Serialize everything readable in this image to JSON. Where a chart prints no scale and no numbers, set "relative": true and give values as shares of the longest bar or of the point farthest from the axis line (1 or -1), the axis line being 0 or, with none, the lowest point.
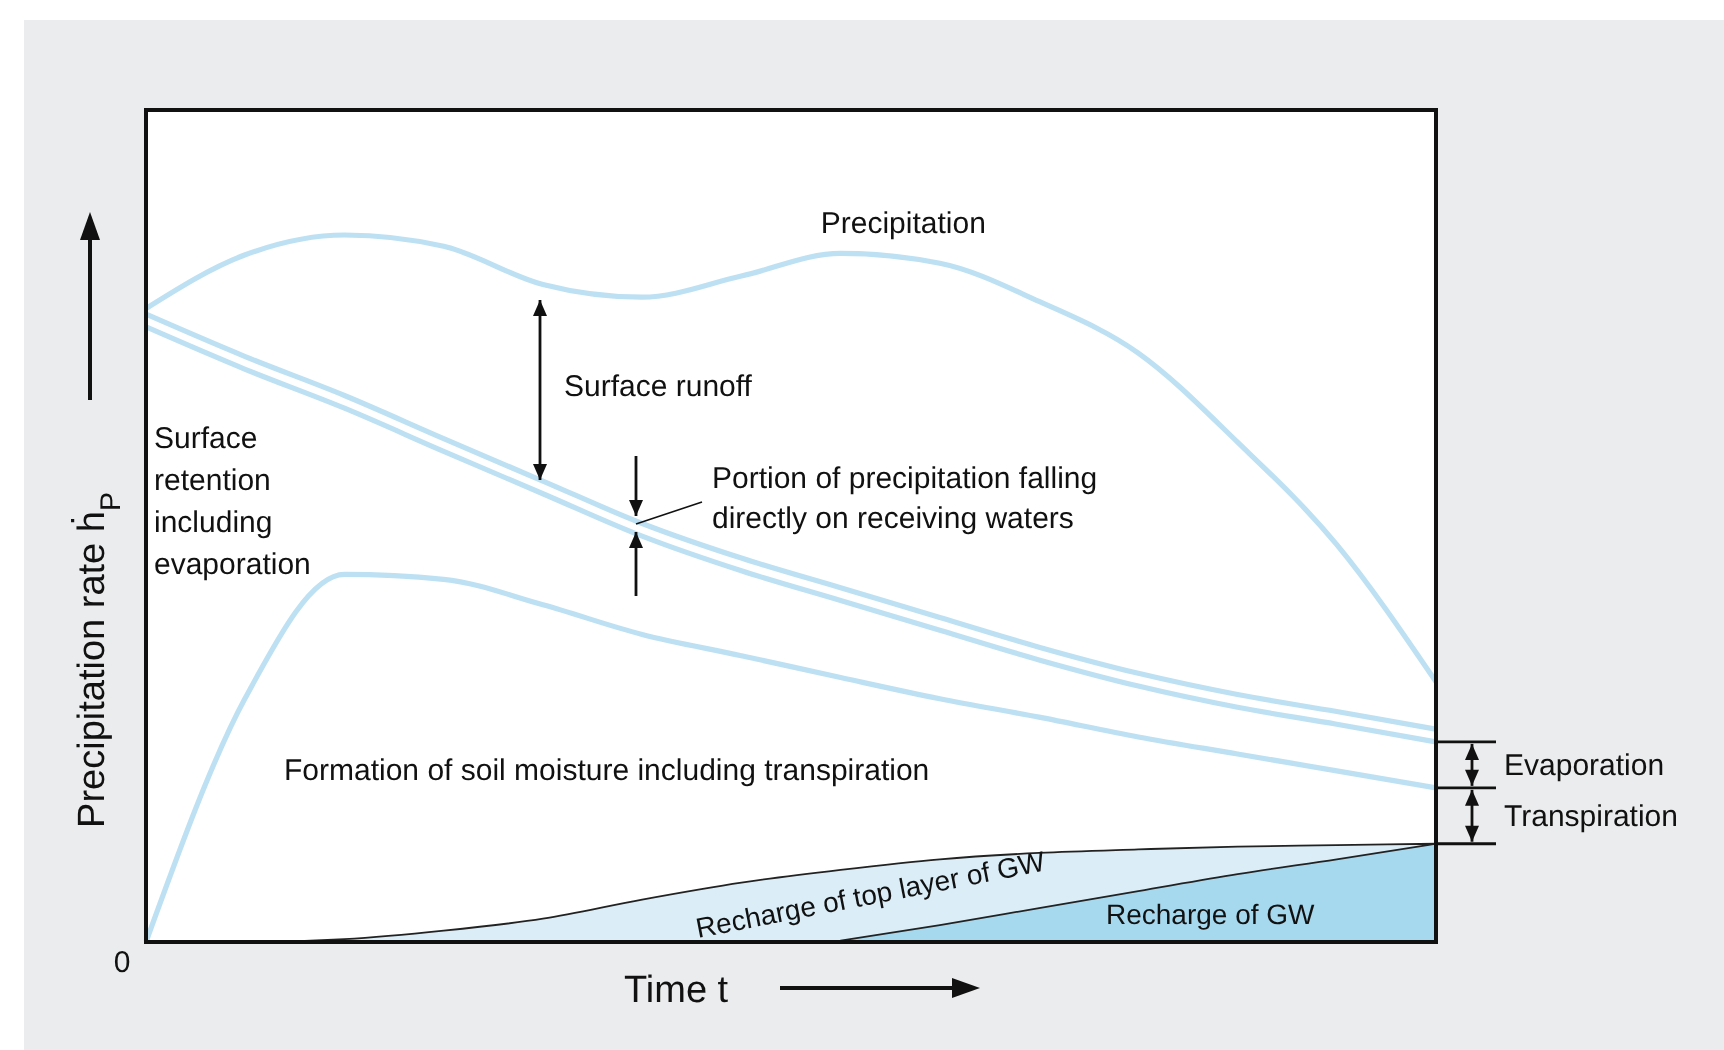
{
  "chart_data": {
    "type": "line",
    "relative": true,
    "xlabel": "Time t",
    "ylabel": "Precipitation rate ḣ$_{P}$",
    "categories": [
      null,
      null,
      null,
      null,
      null,
      null,
      null,
      null,
      null,
      null,
      null,
      null,
      null,
      null
    ],
    "series": [
      {
        "name": "Precipitation",
        "color": "#bde0f3",
        "values": [
          0.896,
          0.972,
          1,
          0.984,
          0.93,
          0.912,
          0.942,
          0.974,
          0.96,
          0.906,
          0.833,
          0.707,
          0.562,
          0.368
        ]
      },
      {
        "color": "#bde0f3",
        "values": [
          0.888,
          0.828,
          0.773,
          0.712,
          0.652,
          0.592,
          0.543,
          0.501,
          0.459,
          0.417,
          0.38,
          0.35,
          0.326,
          0.301
        ]
      },
      {
        "color": "#bde0f3",
        "values": [
          0.87,
          0.81,
          0.755,
          0.694,
          0.634,
          0.574,
          0.525,
          0.483,
          0.441,
          0.399,
          0.362,
          0.332,
          0.308,
          0.283
        ]
      },
      {
        "color": "#bde0f3",
        "values": [
          0,
          0.345,
          0.52,
          0.513,
          0.477,
          0.435,
          0.405,
          0.374,
          0.344,
          0.318,
          0.29,
          0.266,
          0.242,
          0.218
        ]
      },
      {
        "type": "area",
        "color": "#dbeef8",
        "values": [
          0,
          0,
          0.004,
          0.016,
          0.033,
          0.06,
          0.084,
          0.102,
          0.117,
          0.126,
          0.131,
          0.135,
          0.137,
          0.139
        ]
      },
      {
        "type": "area",
        "color": "#a6d8ee",
        "values": [
          null,
          null,
          null,
          null,
          null,
          null,
          null,
          0.002,
          0.024,
          0.048,
          0.072,
          0.096,
          0.117,
          0.139
        ]
      }
    ],
    "annotations": [
      "0",
      "Surface runoff",
      "Portion of precipitation falling directly on receiving waters",
      "Surface retention including evaporation",
      "Formation of soil moisture including transpiration",
      "Recharge of top layer of GW",
      "Recharge of GW",
      "Evaporation",
      "Transpiration"
    ]
  }
}
